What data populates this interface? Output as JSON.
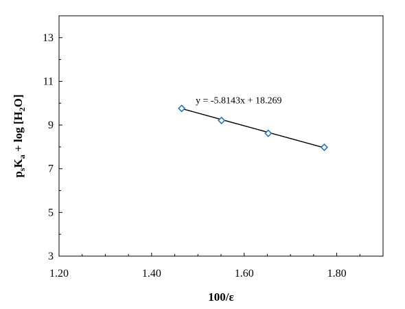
{
  "chart_data": {
    "type": "scatter",
    "title": "",
    "xlabel": "100/ε",
    "ylabel_parts": {
      "p": "p",
      "s": "s",
      "K": "K",
      "a": "a",
      "mid": " + log [H",
      "two": "2",
      "end": "O]"
    },
    "xlim": [
      1.2,
      1.9
    ],
    "ylim": [
      3,
      14
    ],
    "xticks": [
      1.2,
      1.4,
      1.6,
      1.8
    ],
    "xtick_labels": [
      "1.20",
      "1.40",
      "1.60",
      "1.80"
    ],
    "yticks": [
      3,
      5,
      7,
      9,
      11,
      13
    ],
    "ytick_labels": [
      "3",
      "5",
      "7",
      "9",
      "11",
      "13"
    ],
    "grid": false,
    "legend": "none",
    "series": [
      {
        "x": [
          1.465,
          1.551,
          1.652,
          1.773
        ],
        "y": [
          9.76,
          9.21,
          8.62,
          7.98
        ],
        "marker": "diamond-open",
        "color": "#1f6fb4"
      }
    ],
    "trendline": {
      "slope": -5.8143,
      "intercept": 18.269,
      "x_range": [
        1.465,
        1.773
      ],
      "color": "#000000",
      "equation_label": "y = -5.8143x + 18.269",
      "label_anchor": {
        "x": 1.55,
        "y": 10.0
      }
    }
  }
}
